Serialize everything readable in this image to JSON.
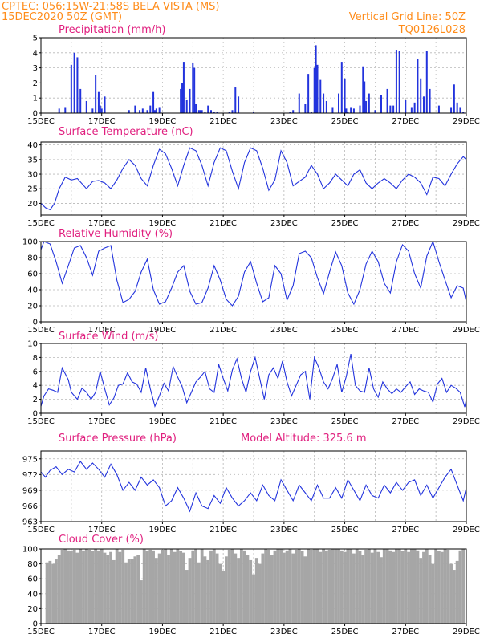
{
  "header": {
    "line1_left": "CPTEC:   056:15W-21:58S   BELA VISTA (MS)",
    "line2_left": "15DEC2020 50Z (GMT)",
    "line1_right": "Vertical Grid Line: 50Z",
    "line2_right": "TQ0126L028"
  },
  "colors": {
    "series": "#2233dd",
    "title": "#e0207f",
    "header": "#ff8c1a",
    "cloud": "#a6a6a6"
  },
  "chart_data": [
    {
      "type": "bar",
      "title": "Precipitation   (mm/h)",
      "ylim": [
        0,
        5
      ],
      "yticks": [
        "0",
        "1",
        "2",
        "3",
        "4",
        "5"
      ],
      "xticks": [
        "15DEC",
        "17DEC",
        "19DEC",
        "21DEC",
        "23DEC",
        "25DEC",
        "27DEC",
        "29DEC"
      ],
      "x": [
        0.6,
        0.8,
        1.0,
        1.1,
        1.2,
        1.3,
        1.5,
        1.7,
        1.8,
        1.9,
        1.95,
        2.0,
        2.1,
        2.9,
        3.1,
        3.25,
        3.35,
        3.5,
        3.6,
        3.7,
        3.75,
        3.8,
        3.9,
        4.6,
        4.65,
        4.7,
        4.8,
        4.9,
        5.0,
        5.05,
        5.1,
        5.2,
        5.25,
        5.3,
        5.4,
        5.5,
        5.6,
        5.7,
        5.8,
        6.2,
        6.3,
        6.4,
        6.5,
        7.0,
        8.2,
        8.3,
        8.5,
        8.7,
        8.8,
        8.9,
        9.0,
        9.05,
        9.1,
        9.2,
        9.3,
        9.4,
        9.6,
        9.8,
        9.9,
        10.0,
        10.05,
        10.1,
        10.2,
        10.3,
        10.5,
        10.6,
        10.65,
        10.7,
        10.8,
        11.0,
        11.2,
        11.4,
        11.5,
        11.6,
        11.7,
        11.8,
        12.0,
        12.2,
        12.3,
        12.4,
        12.5,
        12.6,
        12.7,
        12.8,
        13.1,
        13.5,
        13.6,
        13.7,
        13.8,
        13.9
      ],
      "values": [
        0.3,
        0.4,
        3.2,
        4.0,
        3.7,
        1.6,
        0.8,
        0.3,
        2.5,
        1.4,
        0.5,
        0.3,
        1.1,
        0.2,
        0.5,
        0.2,
        0.3,
        0.2,
        0.5,
        1.4,
        0.2,
        0.3,
        0.4,
        1.6,
        2.0,
        3.4,
        0.9,
        1.6,
        3.3,
        3.0,
        0.6,
        0.2,
        0.2,
        0.2,
        0.1,
        0.5,
        0.2,
        0.1,
        0.1,
        0.1,
        0.2,
        1.7,
        1.1,
        0.1,
        0.1,
        0.2,
        1.3,
        0.6,
        2.6,
        0.1,
        3.0,
        4.5,
        3.2,
        2.2,
        1.3,
        0.8,
        0.4,
        1.3,
        3.4,
        2.3,
        0.3,
        0.1,
        0.4,
        0.3,
        0.5,
        3.1,
        2.1,
        0.8,
        1.3,
        0.2,
        1.2,
        1.6,
        0.5,
        0.5,
        4.2,
        4.1,
        0.9,
        0.4,
        0.7,
        3.6,
        2.3,
        1.1,
        4.1,
        1.6,
        0.5,
        0.4,
        1.9,
        0.7,
        0.4,
        0.1
      ]
    },
    {
      "type": "line",
      "title": "Surface Temperature (nC)",
      "ylim": [
        16,
        41
      ],
      "yticks": [
        "20",
        "25",
        "30",
        "35",
        "40"
      ],
      "xticks": [
        "15DEC",
        "17DEC",
        "19DEC",
        "21DEC",
        "23DEC",
        "25DEC",
        "27DEC",
        "29DEC"
      ],
      "x": [
        0,
        0.15,
        0.3,
        0.45,
        0.6,
        0.8,
        1.0,
        1.2,
        1.5,
        1.7,
        1.9,
        2.1,
        2.3,
        2.5,
        2.7,
        2.9,
        3.1,
        3.3,
        3.5,
        3.7,
        3.9,
        4.1,
        4.3,
        4.5,
        4.7,
        4.9,
        5.1,
        5.3,
        5.5,
        5.7,
        5.9,
        6.1,
        6.3,
        6.5,
        6.7,
        6.9,
        7.1,
        7.3,
        7.5,
        7.7,
        7.9,
        8.1,
        8.3,
        8.5,
        8.7,
        8.9,
        9.1,
        9.3,
        9.5,
        9.7,
        9.9,
        10.1,
        10.3,
        10.5,
        10.7,
        10.9,
        11.1,
        11.3,
        11.5,
        11.7,
        11.9,
        12.1,
        12.3,
        12.5,
        12.7,
        12.9,
        13.1,
        13.3,
        13.5,
        13.7,
        13.9,
        14.0
      ],
      "values": [
        20,
        18.5,
        17.8,
        20,
        25,
        29,
        28,
        28.5,
        25,
        27.5,
        27.8,
        27,
        25,
        28,
        32,
        35,
        33,
        28.5,
        26,
        33,
        38.5,
        37,
        32,
        26,
        33,
        39,
        38,
        33,
        26,
        34,
        39,
        38,
        31,
        25,
        34,
        39,
        38,
        32,
        24.5,
        28,
        38,
        34,
        26,
        27.5,
        29,
        33,
        30,
        25,
        27,
        30,
        28,
        26,
        30,
        31.5,
        27,
        25,
        27,
        28.5,
        27,
        25,
        28,
        30,
        29,
        27,
        23,
        29,
        28.5,
        26,
        30,
        33.5,
        36,
        35
      ]
    },
    {
      "type": "line",
      "title": "Relative Humidity (%)",
      "ylim": [
        0,
        100
      ],
      "yticks": [
        "0",
        "20",
        "40",
        "60",
        "80",
        "100"
      ],
      "xticks": [
        "15DEC",
        "17DEC",
        "19DEC",
        "21DEC",
        "23DEC",
        "25DEC",
        "27DEC",
        "29DEC"
      ],
      "x": [
        0,
        0.1,
        0.3,
        0.5,
        0.7,
        0.9,
        1.1,
        1.3,
        1.5,
        1.7,
        1.9,
        2.1,
        2.3,
        2.5,
        2.7,
        2.9,
        3.1,
        3.3,
        3.5,
        3.7,
        3.9,
        4.1,
        4.3,
        4.5,
        4.7,
        4.9,
        5.1,
        5.3,
        5.5,
        5.7,
        5.9,
        6.1,
        6.3,
        6.5,
        6.7,
        6.9,
        7.1,
        7.3,
        7.5,
        7.7,
        7.9,
        8.1,
        8.3,
        8.5,
        8.7,
        8.9,
        9.1,
        9.3,
        9.5,
        9.7,
        9.9,
        10.1,
        10.3,
        10.5,
        10.7,
        10.9,
        11.1,
        11.3,
        11.5,
        11.7,
        11.9,
        12.1,
        12.3,
        12.5,
        12.7,
        12.9,
        13.1,
        13.3,
        13.5,
        13.7,
        13.9,
        14.0
      ],
      "values": [
        90,
        100,
        97,
        75,
        48,
        70,
        92,
        95,
        80,
        58,
        88,
        92,
        95,
        52,
        24,
        28,
        38,
        62,
        78,
        40,
        22,
        25,
        42,
        62,
        70,
        38,
        22,
        24,
        42,
        70,
        52,
        28,
        20,
        32,
        62,
        75,
        48,
        25,
        30,
        70,
        60,
        27,
        45,
        85,
        88,
        80,
        55,
        35,
        62,
        87,
        70,
        36,
        22,
        40,
        72,
        88,
        75,
        48,
        36,
        75,
        96,
        88,
        60,
        42,
        82,
        100,
        75,
        52,
        30,
        45,
        42,
        25
      ]
    },
    {
      "type": "line",
      "title": "Surface Wind  (m/s)",
      "ylim": [
        0,
        10
      ],
      "yticks": [
        "0",
        "2",
        "4",
        "6",
        "8",
        "10"
      ],
      "xticks": [
        "15DEC",
        "17DEC",
        "19DEC",
        "21DEC",
        "23DEC",
        "25DEC",
        "27DEC",
        "29DEC"
      ],
      "x": [
        0,
        0.1,
        0.25,
        0.4,
        0.55,
        0.7,
        0.9,
        1.0,
        1.2,
        1.35,
        1.5,
        1.65,
        1.8,
        1.95,
        2.1,
        2.25,
        2.4,
        2.55,
        2.7,
        2.85,
        3.0,
        3.15,
        3.3,
        3.45,
        3.6,
        3.75,
        3.9,
        4.05,
        4.2,
        4.35,
        4.5,
        4.65,
        4.8,
        4.95,
        5.1,
        5.25,
        5.4,
        5.55,
        5.7,
        5.85,
        6.0,
        6.15,
        6.3,
        6.45,
        6.6,
        6.75,
        6.9,
        7.05,
        7.2,
        7.35,
        7.5,
        7.65,
        7.8,
        7.95,
        8.1,
        8.25,
        8.4,
        8.55,
        8.7,
        8.85,
        9.0,
        9.15,
        9.3,
        9.45,
        9.6,
        9.75,
        9.9,
        10.05,
        10.2,
        10.35,
        10.5,
        10.65,
        10.8,
        10.95,
        11.1,
        11.25,
        11.4,
        11.55,
        11.7,
        11.85,
        12.0,
        12.15,
        12.3,
        12.45,
        12.6,
        12.75,
        12.9,
        13.05,
        13.2,
        13.35,
        13.5,
        13.65,
        13.8,
        13.95,
        14.0
      ],
      "values": [
        1,
        2.5,
        3.5,
        3.3,
        3.0,
        6.5,
        4.8,
        3.0,
        2.0,
        3.6,
        3.0,
        2.0,
        3.0,
        6.0,
        3.5,
        1.2,
        2.2,
        4.0,
        4.2,
        5.8,
        4.5,
        4.2,
        3.0,
        6.5,
        3.5,
        1.0,
        2.5,
        4.3,
        3.2,
        6.7,
        5.2,
        3.8,
        1.5,
        3.0,
        4.5,
        5.2,
        6.0,
        3.5,
        3.0,
        7.0,
        5.0,
        3.2,
        6.2,
        7.8,
        5.0,
        3.0,
        6.0,
        8.0,
        5.0,
        2.0,
        5.5,
        6.5,
        5.0,
        7.5,
        4.5,
        2.5,
        4.0,
        5.5,
        6.0,
        2.0,
        8.0,
        6.5,
        4.5,
        3.5,
        5.0,
        7.0,
        3.0,
        5.3,
        8.5,
        4.0,
        3.2,
        3.0,
        6.5,
        3.5,
        2.3,
        4.5,
        3.5,
        2.8,
        3.5,
        3.0,
        3.8,
        4.5,
        2.7,
        3.5,
        3.2,
        3.0,
        1.6,
        4.2,
        5.0,
        3.0,
        4.0,
        3.6,
        3.0,
        0.9,
        2.0
      ]
    },
    {
      "type": "line",
      "title": "Surface Pressure (hPa)",
      "annotation": "Model Altitude: 325.6  m",
      "ylim": [
        963,
        976.5
      ],
      "yticks": [
        "963",
        "966",
        "969",
        "972",
        "975"
      ],
      "xticks": [
        "15DEC",
        "17DEC",
        "19DEC",
        "21DEC",
        "23DEC",
        "25DEC",
        "27DEC",
        "29DEC"
      ],
      "x": [
        0,
        0.15,
        0.3,
        0.5,
        0.7,
        0.9,
        1.1,
        1.3,
        1.5,
        1.7,
        1.9,
        2.1,
        2.3,
        2.5,
        2.7,
        2.9,
        3.1,
        3.3,
        3.5,
        3.7,
        3.9,
        4.1,
        4.3,
        4.5,
        4.7,
        4.9,
        5.1,
        5.3,
        5.5,
        5.7,
        5.9,
        6.1,
        6.3,
        6.5,
        6.7,
        6.9,
        7.1,
        7.3,
        7.5,
        7.7,
        7.9,
        8.1,
        8.3,
        8.5,
        8.7,
        8.9,
        9.1,
        9.3,
        9.5,
        9.7,
        9.9,
        10.1,
        10.3,
        10.5,
        10.7,
        10.9,
        11.1,
        11.3,
        11.5,
        11.7,
        11.9,
        12.1,
        12.3,
        12.5,
        12.7,
        12.9,
        13.1,
        13.3,
        13.5,
        13.7,
        13.9,
        14.0
      ],
      "values": [
        972.5,
        971.5,
        972.8,
        973.5,
        972,
        973,
        972.5,
        974.5,
        973,
        974.2,
        973,
        971.5,
        974,
        972,
        969,
        970.5,
        969,
        971.5,
        970,
        971,
        969.5,
        966,
        967,
        969.5,
        967.5,
        965,
        968.5,
        966,
        965.5,
        968,
        966.5,
        969.5,
        967.5,
        966,
        967,
        968.5,
        967,
        970,
        968,
        967,
        971,
        969,
        967,
        970,
        968.5,
        967,
        970,
        967.5,
        967.5,
        969.5,
        967.5,
        971,
        969,
        967,
        970,
        968,
        967.5,
        970,
        968.5,
        970.5,
        969,
        970.5,
        971,
        968,
        970,
        967.5,
        969.5,
        971.5,
        973,
        970,
        967,
        969.5
      ]
    },
    {
      "type": "bar",
      "title": "Cloud Cover (%)",
      "ylim": [
        0,
        100
      ],
      "yticks": [
        "0",
        "20",
        "40",
        "60",
        "80",
        "100"
      ],
      "xticks": [
        "15DEC",
        "17DEC",
        "19DEC",
        "21DEC",
        "23DEC",
        "25DEC",
        "27DEC",
        "29DEC"
      ],
      "x": [
        0.2,
        0.3,
        0.4,
        0.5,
        0.6,
        0.7,
        0.8,
        0.9,
        1.0,
        1.1,
        1.2,
        1.3,
        1.4,
        1.5,
        1.6,
        1.7,
        1.8,
        1.9,
        2.0,
        2.1,
        2.2,
        2.3,
        2.4,
        2.5,
        2.6,
        2.7,
        2.8,
        2.9,
        3.0,
        3.1,
        3.2,
        3.3,
        3.4,
        3.5,
        3.6,
        3.7,
        3.8,
        3.9,
        4.0,
        4.1,
        4.2,
        4.3,
        4.4,
        4.5,
        4.6,
        4.7,
        4.8,
        4.9,
        5.0,
        5.1,
        5.2,
        5.3,
        5.4,
        5.5,
        5.6,
        5.7,
        5.8,
        5.9,
        6.0,
        6.1,
        6.2,
        6.3,
        6.4,
        6.5,
        6.6,
        6.7,
        6.8,
        6.9,
        7.0,
        7.1,
        7.2,
        7.3,
        7.4,
        7.5,
        7.6,
        7.7,
        7.8,
        7.9,
        8.0,
        8.1,
        8.2,
        8.3,
        8.4,
        8.5,
        8.6,
        8.7,
        8.8,
        8.9,
        9.0,
        9.1,
        9.2,
        9.3,
        9.4,
        9.5,
        9.6,
        9.7,
        9.8,
        9.9,
        10.0,
        10.1,
        10.2,
        10.3,
        10.4,
        10.5,
        10.6,
        10.7,
        10.8,
        10.9,
        11.0,
        11.1,
        11.2,
        11.3,
        11.4,
        11.5,
        11.6,
        11.7,
        11.8,
        11.9,
        12.0,
        12.1,
        12.2,
        12.3,
        12.4,
        12.5,
        12.6,
        12.7,
        12.8,
        12.9,
        13.0,
        13.1,
        13.2,
        13.3,
        13.4,
        13.5,
        13.6,
        13.7,
        13.8,
        13.9
      ],
      "values": [
        82,
        84,
        80,
        86,
        92,
        99,
        100,
        98,
        97,
        99,
        95,
        100,
        98,
        100,
        99,
        97,
        100,
        98,
        100,
        95,
        92,
        96,
        85,
        100,
        96,
        99,
        82,
        86,
        87,
        90,
        92,
        58,
        100,
        97,
        99,
        98,
        88,
        94,
        99,
        100,
        92,
        100,
        96,
        100,
        97,
        95,
        72,
        88,
        98,
        100,
        82,
        100,
        90,
        85,
        98,
        100,
        94,
        80,
        70,
        90,
        99,
        100,
        94,
        88,
        100,
        98,
        92,
        85,
        66,
        88,
        80,
        94,
        100,
        99,
        92,
        98,
        100,
        100,
        95,
        98,
        100,
        94,
        99,
        100,
        97,
        90,
        100,
        99,
        100,
        100,
        96,
        100,
        98,
        99,
        100,
        100,
        100,
        98,
        96,
        100,
        100,
        94,
        100,
        97,
        92,
        99,
        100,
        95,
        100,
        96,
        89,
        100,
        100,
        98,
        96,
        100,
        100,
        97,
        100,
        96,
        100,
        100,
        98,
        88,
        96,
        100,
        92,
        80,
        100,
        97,
        96,
        100,
        99,
        80,
        72,
        84,
        98,
        100
      ]
    }
  ]
}
